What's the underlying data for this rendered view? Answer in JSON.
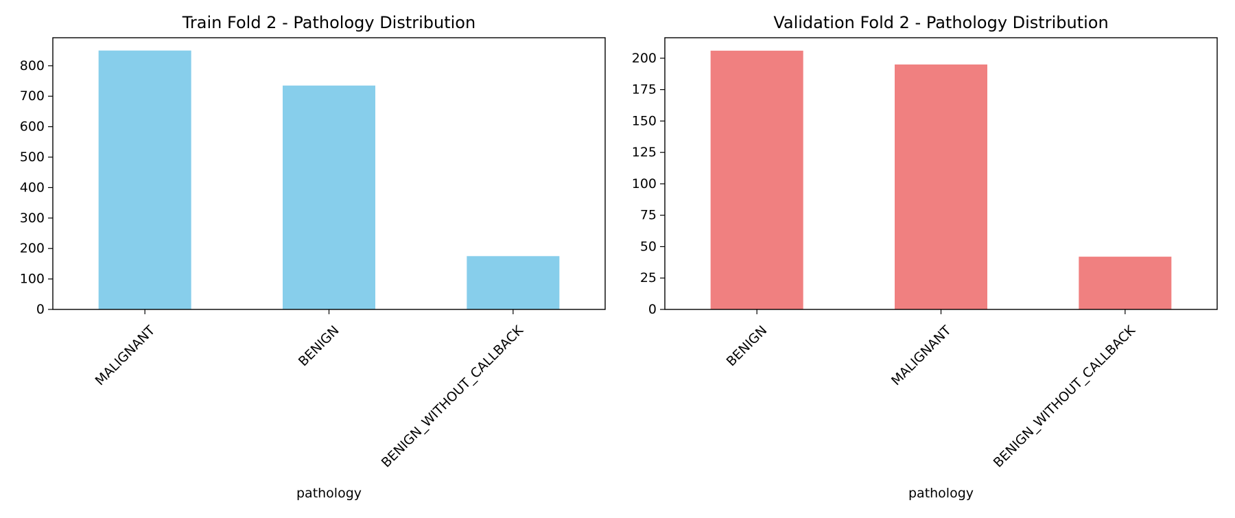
{
  "chart_data": [
    {
      "type": "bar",
      "title": "Train Fold 2 - Pathology Distribution",
      "xlabel": "pathology",
      "ylabel": "",
      "categories": [
        "MALIGNANT",
        "BENIGN",
        "BENIGN_WITHOUT_CALLBACK"
      ],
      "values": [
        850,
        735,
        175
      ],
      "yticks": [
        0,
        100,
        200,
        300,
        400,
        500,
        600,
        700,
        800
      ],
      "ylim": [
        0,
        892
      ],
      "bar_color": "#87ceeb",
      "grid": false,
      "legend": "none"
    },
    {
      "type": "bar",
      "title": "Validation Fold 2 - Pathology Distribution",
      "xlabel": "pathology",
      "ylabel": "",
      "categories": [
        "BENIGN",
        "MALIGNANT",
        "BENIGN_WITHOUT_CALLBACK"
      ],
      "values": [
        206,
        195,
        42
      ],
      "yticks": [
        0,
        25,
        50,
        75,
        100,
        125,
        150,
        175,
        200
      ],
      "ylim": [
        0,
        216.3
      ],
      "bar_color": "#f08080",
      "grid": false,
      "legend": "none"
    }
  ]
}
